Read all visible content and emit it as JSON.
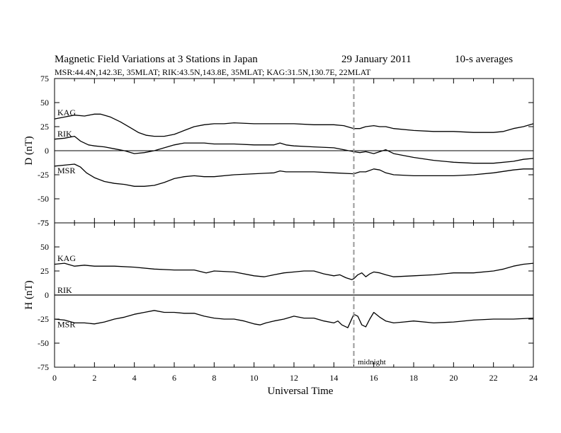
{
  "header": {
    "title": "Magnetic Field Variations at 3 Stations in Japan",
    "date": "29 January 2011",
    "averaging": "10-s averages",
    "stations_line": "MSR:44.4N,142.3E, 35MLAT;  RIK:43.5N,143.8E, 35MLAT;  KAG:31.5N,130.7E, 22MLAT"
  },
  "marker": {
    "label": "midnight",
    "x": 15
  },
  "chart_data": [
    {
      "type": "line",
      "ylabel": "D (nT)",
      "xlabel": "",
      "xlim": [
        0,
        24
      ],
      "ylim": [
        -75,
        75
      ],
      "yticks": [
        -75,
        -50,
        -25,
        0,
        25,
        50,
        75
      ],
      "series": [
        {
          "name": "KAG",
          "x": [
            0,
            0.5,
            1,
            1.5,
            2,
            2.3,
            2.8,
            3.3,
            3.8,
            4.2,
            4.6,
            5,
            5.5,
            6,
            6.5,
            7,
            7.5,
            8,
            8.5,
            9,
            10,
            11,
            12,
            13,
            14,
            14.5,
            15,
            15.3,
            15.6,
            16,
            16.3,
            16.6,
            17,
            18,
            19,
            20,
            21,
            22,
            22.5,
            23,
            23.5,
            24
          ],
          "y": [
            33,
            35,
            37,
            36,
            38,
            38,
            35,
            30,
            24,
            19,
            16,
            15,
            15,
            17,
            21,
            25,
            27,
            28,
            28,
            29,
            28,
            28,
            28,
            27,
            27,
            26,
            23,
            23,
            25,
            26,
            25,
            25,
            23,
            21,
            20,
            20,
            19,
            19,
            20,
            23,
            25,
            28
          ]
        },
        {
          "name": "RIK",
          "x": [
            0,
            0.5,
            1,
            1.3,
            1.7,
            2,
            2.5,
            3,
            3.5,
            4,
            4.5,
            5,
            5.5,
            6,
            6.5,
            7,
            7.5,
            8,
            9,
            10,
            11,
            11.3,
            11.6,
            12,
            13,
            14,
            15,
            15.3,
            15.6,
            16,
            16.3,
            16.6,
            17,
            18,
            19,
            20,
            21,
            22,
            23,
            23.5,
            24
          ],
          "y": [
            12,
            13,
            15,
            10,
            6,
            5,
            4,
            2,
            0,
            -3,
            -2,
            0,
            3,
            6,
            8,
            8,
            8,
            7,
            7,
            6,
            6,
            8,
            6,
            5,
            4,
            3,
            -1,
            -2,
            -1,
            -3,
            -1,
            1,
            -3,
            -7,
            -10,
            -12,
            -13,
            -13,
            -11,
            -9,
            -8
          ]
        },
        {
          "name": "MSR",
          "x": [
            0,
            0.5,
            1,
            1.3,
            1.6,
            2,
            2.5,
            3,
            3.5,
            4,
            4.5,
            5,
            5.5,
            6,
            6.5,
            7,
            7.5,
            8,
            9,
            10,
            11,
            11.3,
            11.6,
            12,
            13,
            14,
            15,
            15.3,
            15.6,
            16,
            16.3,
            16.6,
            17,
            18,
            19,
            20,
            21,
            22,
            23,
            23.5,
            24
          ],
          "y": [
            -16,
            -15,
            -14,
            -17,
            -23,
            -28,
            -32,
            -34,
            -35,
            -37,
            -37,
            -36,
            -33,
            -29,
            -27,
            -26,
            -27,
            -27,
            -25,
            -24,
            -23,
            -21,
            -22,
            -22,
            -22,
            -23,
            -24,
            -22,
            -22,
            -19,
            -20,
            -23,
            -25,
            -26,
            -26,
            -26,
            -25,
            -23,
            -20,
            -19,
            -19
          ]
        }
      ]
    },
    {
      "type": "line",
      "ylabel": "H (nT)",
      "xlabel": "Universal Time",
      "xlim": [
        0,
        24
      ],
      "ylim": [
        -75,
        75
      ],
      "yticks": [
        -75,
        -50,
        -25,
        0,
        25,
        50,
        75
      ],
      "xticks": [
        0,
        2,
        4,
        6,
        8,
        10,
        12,
        14,
        16,
        18,
        20,
        22,
        24
      ],
      "series": [
        {
          "name": "KAG",
          "x": [
            0,
            0.5,
            1,
            1.5,
            2,
            3,
            4,
            5,
            6,
            7,
            7.6,
            8,
            9,
            10,
            10.5,
            11,
            11.5,
            12,
            12.5,
            13,
            13.5,
            14,
            14.3,
            14.6,
            14.9,
            15,
            15.2,
            15.4,
            15.6,
            15.8,
            16,
            16.3,
            16.6,
            17,
            18,
            19,
            20,
            21,
            22,
            22.5,
            23,
            23.5,
            24
          ],
          "y": [
            32,
            33,
            30,
            31,
            30,
            30,
            29,
            27,
            26,
            26,
            23,
            25,
            24,
            20,
            19,
            21,
            23,
            24,
            25,
            25,
            22,
            20,
            21,
            18,
            16,
            17,
            21,
            23,
            19,
            22,
            24,
            23,
            21,
            19,
            20,
            21,
            23,
            23,
            25,
            27,
            30,
            32,
            33
          ]
        },
        {
          "name": "RIK",
          "x": [
            0,
            24
          ],
          "y": [
            0,
            0
          ]
        },
        {
          "name": "MSR",
          "x": [
            0,
            0.5,
            1,
            1.5,
            2,
            2.5,
            3,
            3.5,
            4,
            4.5,
            5,
            5.5,
            6,
            6.5,
            7,
            7.5,
            8,
            8.5,
            9,
            9.5,
            10,
            10.3,
            10.6,
            11,
            11.5,
            12,
            12.5,
            13,
            13.5,
            14,
            14.2,
            14.4,
            14.7,
            15,
            15.2,
            15.4,
            15.6,
            15.8,
            16,
            16.3,
            16.6,
            17,
            17.5,
            18,
            19,
            20,
            21,
            22,
            23,
            24
          ],
          "y": [
            -25,
            -26,
            -29,
            -29,
            -30,
            -28,
            -25,
            -23,
            -20,
            -18,
            -16,
            -18,
            -18,
            -19,
            -19,
            -22,
            -24,
            -25,
            -25,
            -27,
            -30,
            -31,
            -29,
            -27,
            -25,
            -22,
            -24,
            -24,
            -27,
            -29,
            -27,
            -31,
            -34,
            -20,
            -22,
            -31,
            -33,
            -25,
            -18,
            -23,
            -27,
            -29,
            -28,
            -27,
            -29,
            -28,
            -26,
            -25,
            -25,
            -24
          ]
        }
      ]
    }
  ]
}
